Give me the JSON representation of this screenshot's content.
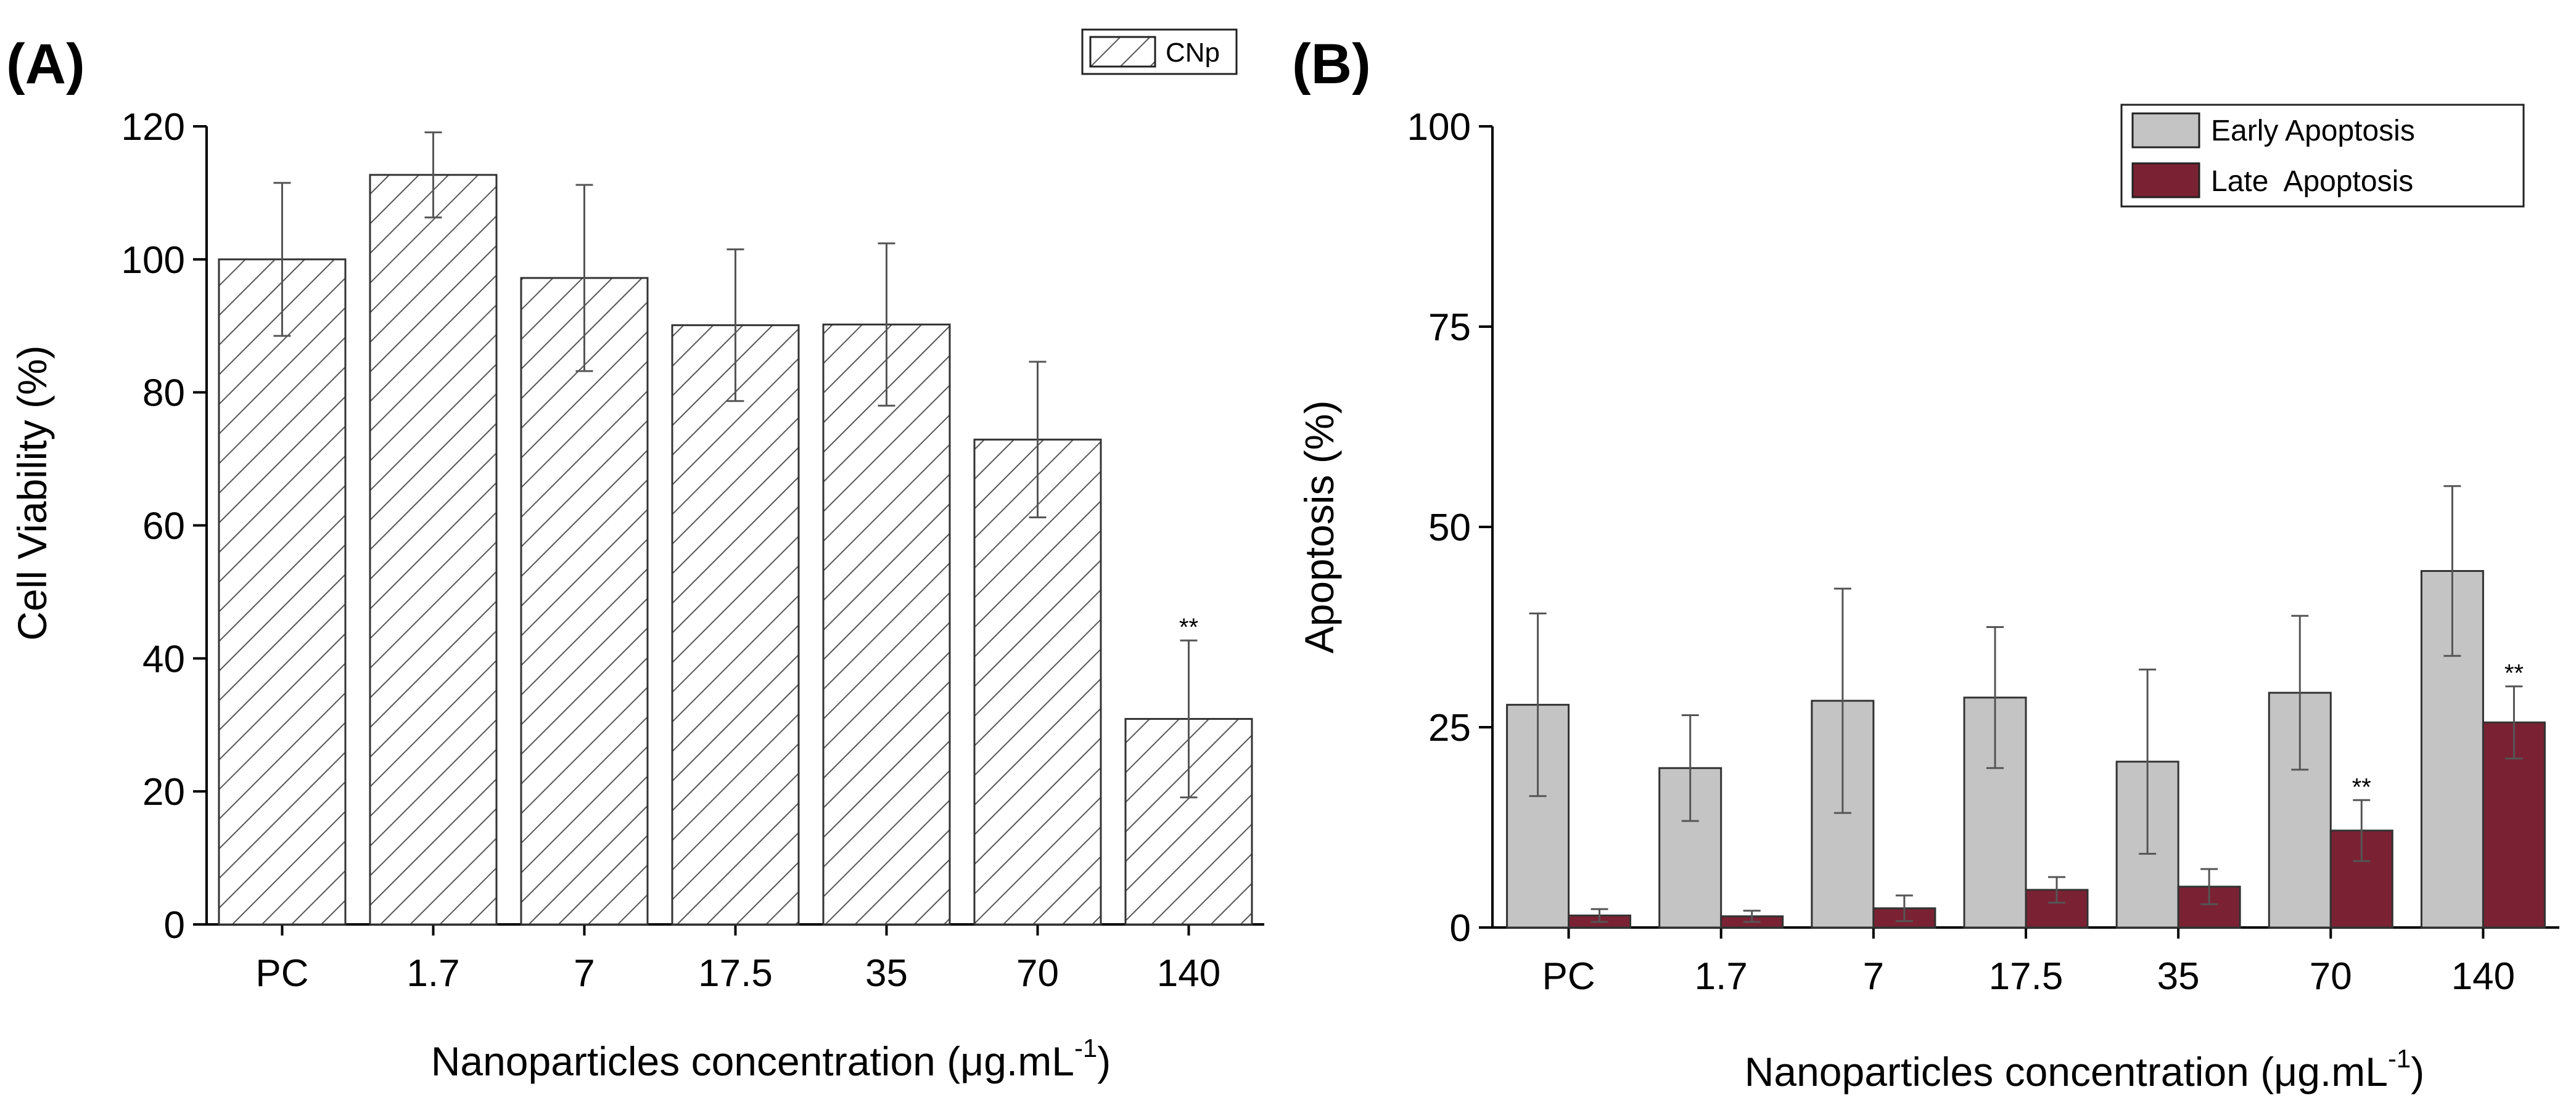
{
  "chart_data": [
    {
      "panel": "(A)",
      "type": "bar",
      "categories": [
        "PC",
        "1.7",
        "7",
        "17.5",
        "35",
        "70",
        "140"
      ],
      "series": [
        {
          "name": "CNp",
          "values": [
            100,
            112.7,
            97.2,
            90.1,
            90.2,
            72.9,
            30.9
          ],
          "errors": [
            11.5,
            6.4,
            14,
            11.4,
            12.2,
            11.7,
            11.8
          ],
          "annotations": [
            "",
            "",
            "",
            "",
            "",
            "",
            "**"
          ],
          "fill": "hatched",
          "color": "#3a3a3a"
        }
      ],
      "xlabel": "Nanoparticles concentration (μg.mL",
      "xlabel_sup": "-1",
      "xlabel_tail": ")",
      "ylabel": "Cell Viability (%)",
      "ylim": [
        0,
        120
      ],
      "yticks": [
        0,
        20,
        40,
        60,
        80,
        100,
        120
      ],
      "legend_position": "top-right"
    },
    {
      "panel": "(B)",
      "type": "bar",
      "categories": [
        "PC",
        "1.7",
        "7",
        "17.5",
        "35",
        "70",
        "140"
      ],
      "series": [
        {
          "name": "Early Apoptosis",
          "values": [
            27.8,
            19.9,
            28.3,
            28.7,
            20.7,
            29.3,
            44.5
          ],
          "errors": [
            11.4,
            6.6,
            14,
            8.8,
            11.5,
            9.6,
            10.6
          ],
          "annotations": [
            "",
            "",
            "",
            "",
            "",
            "",
            ""
          ],
          "color": "#c4c4c4"
        },
        {
          "name": "Late  Apoptosis",
          "values": [
            1.5,
            1.4,
            2.4,
            4.7,
            5.1,
            12.1,
            25.6
          ],
          "errors": [
            0.8,
            0.7,
            1.6,
            1.6,
            2.2,
            3.8,
            4.5
          ],
          "annotations": [
            "",
            "",
            "",
            "",
            "",
            "**",
            "**"
          ],
          "color": "#7a2233"
        }
      ],
      "xlabel": "Nanoparticles concentration (μg.mL",
      "xlabel_sup": "-1",
      "xlabel_tail": ")",
      "ylabel": "Apoptosis (%)",
      "ylim": [
        0,
        100
      ],
      "yticks": [
        0,
        25,
        50,
        75,
        100
      ],
      "legend_position": "top-right"
    }
  ]
}
